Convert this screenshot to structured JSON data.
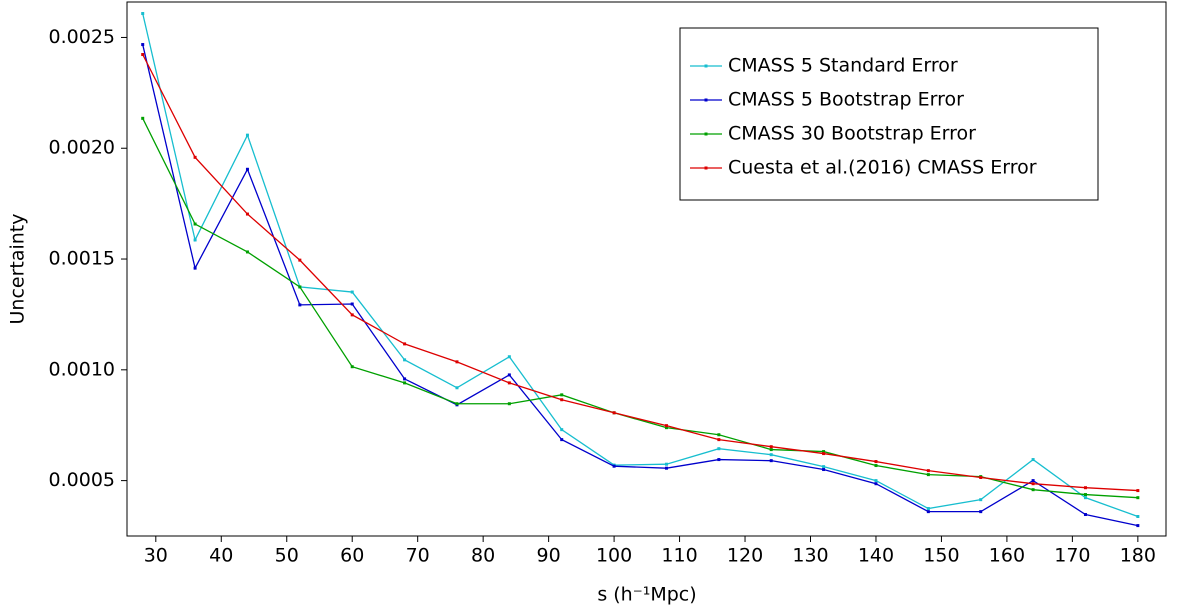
{
  "chart_data": {
    "type": "line",
    "xlabel": "s (h⁻¹Mpc)",
    "ylabel": "Uncertainty",
    "x": [
      28,
      36,
      44,
      52,
      60,
      68,
      76,
      84,
      92,
      100,
      108,
      116,
      124,
      132,
      140,
      148,
      156,
      164,
      172,
      180
    ],
    "series": [
      {
        "name": "CMASS 5 Standard Error",
        "color": "#17becf",
        "values": [
          0.002608,
          0.001586,
          0.002059,
          0.001374,
          0.001351,
          0.001045,
          0.000919,
          0.001059,
          0.00073,
          0.00057,
          0.000574,
          0.000644,
          0.000617,
          0.000563,
          0.0005,
          0.000374,
          0.000414,
          0.000595,
          0.000423,
          0.000338
        ]
      },
      {
        "name": "CMASS 5 Bootstrap Error",
        "color": "#0000cc",
        "values": [
          0.002468,
          0.001459,
          0.001905,
          0.001293,
          0.001297,
          0.000959,
          0.000842,
          0.000977,
          0.000685,
          0.000565,
          0.000556,
          0.000595,
          0.00059,
          0.00055,
          0.000486,
          0.00036,
          0.00036,
          0.0005,
          0.000347,
          0.000297
        ]
      },
      {
        "name": "CMASS 30 Bootstrap Error",
        "color": "#00a000",
        "values": [
          0.002135,
          0.001658,
          0.001532,
          0.001374,
          0.001014,
          0.000941,
          0.000847,
          0.000847,
          0.000887,
          0.000806,
          0.000739,
          0.000707,
          0.00064,
          0.000631,
          0.000568,
          0.000527,
          0.000518,
          0.000459,
          0.000437,
          0.000423
        ]
      },
      {
        "name": "Cuesta et al.(2016) CMASS Error",
        "color": "#dd0000",
        "values": [
          0.002423,
          0.001959,
          0.001703,
          0.001495,
          0.001248,
          0.001117,
          0.001036,
          0.000941,
          0.000865,
          0.000806,
          0.000748,
          0.000685,
          0.000653,
          0.000622,
          0.000586,
          0.000545,
          0.000514,
          0.000486,
          0.000468,
          0.000455
        ]
      }
    ],
    "xlim": [
      25.6,
      184.3
    ],
    "ylim": [
      0.00025,
      0.00266
    ],
    "xticks": [
      30,
      40,
      50,
      60,
      70,
      80,
      90,
      100,
      110,
      120,
      130,
      140,
      150,
      160,
      170,
      180
    ],
    "yticks": [
      0.0005,
      {
        "value": 0.001,
        "label": "0.0010"
      },
      0.0015,
      {
        "value": 0.002,
        "label": "0.0020"
      },
      0.0025
    ],
    "legend": "upper right",
    "grid": false
  }
}
